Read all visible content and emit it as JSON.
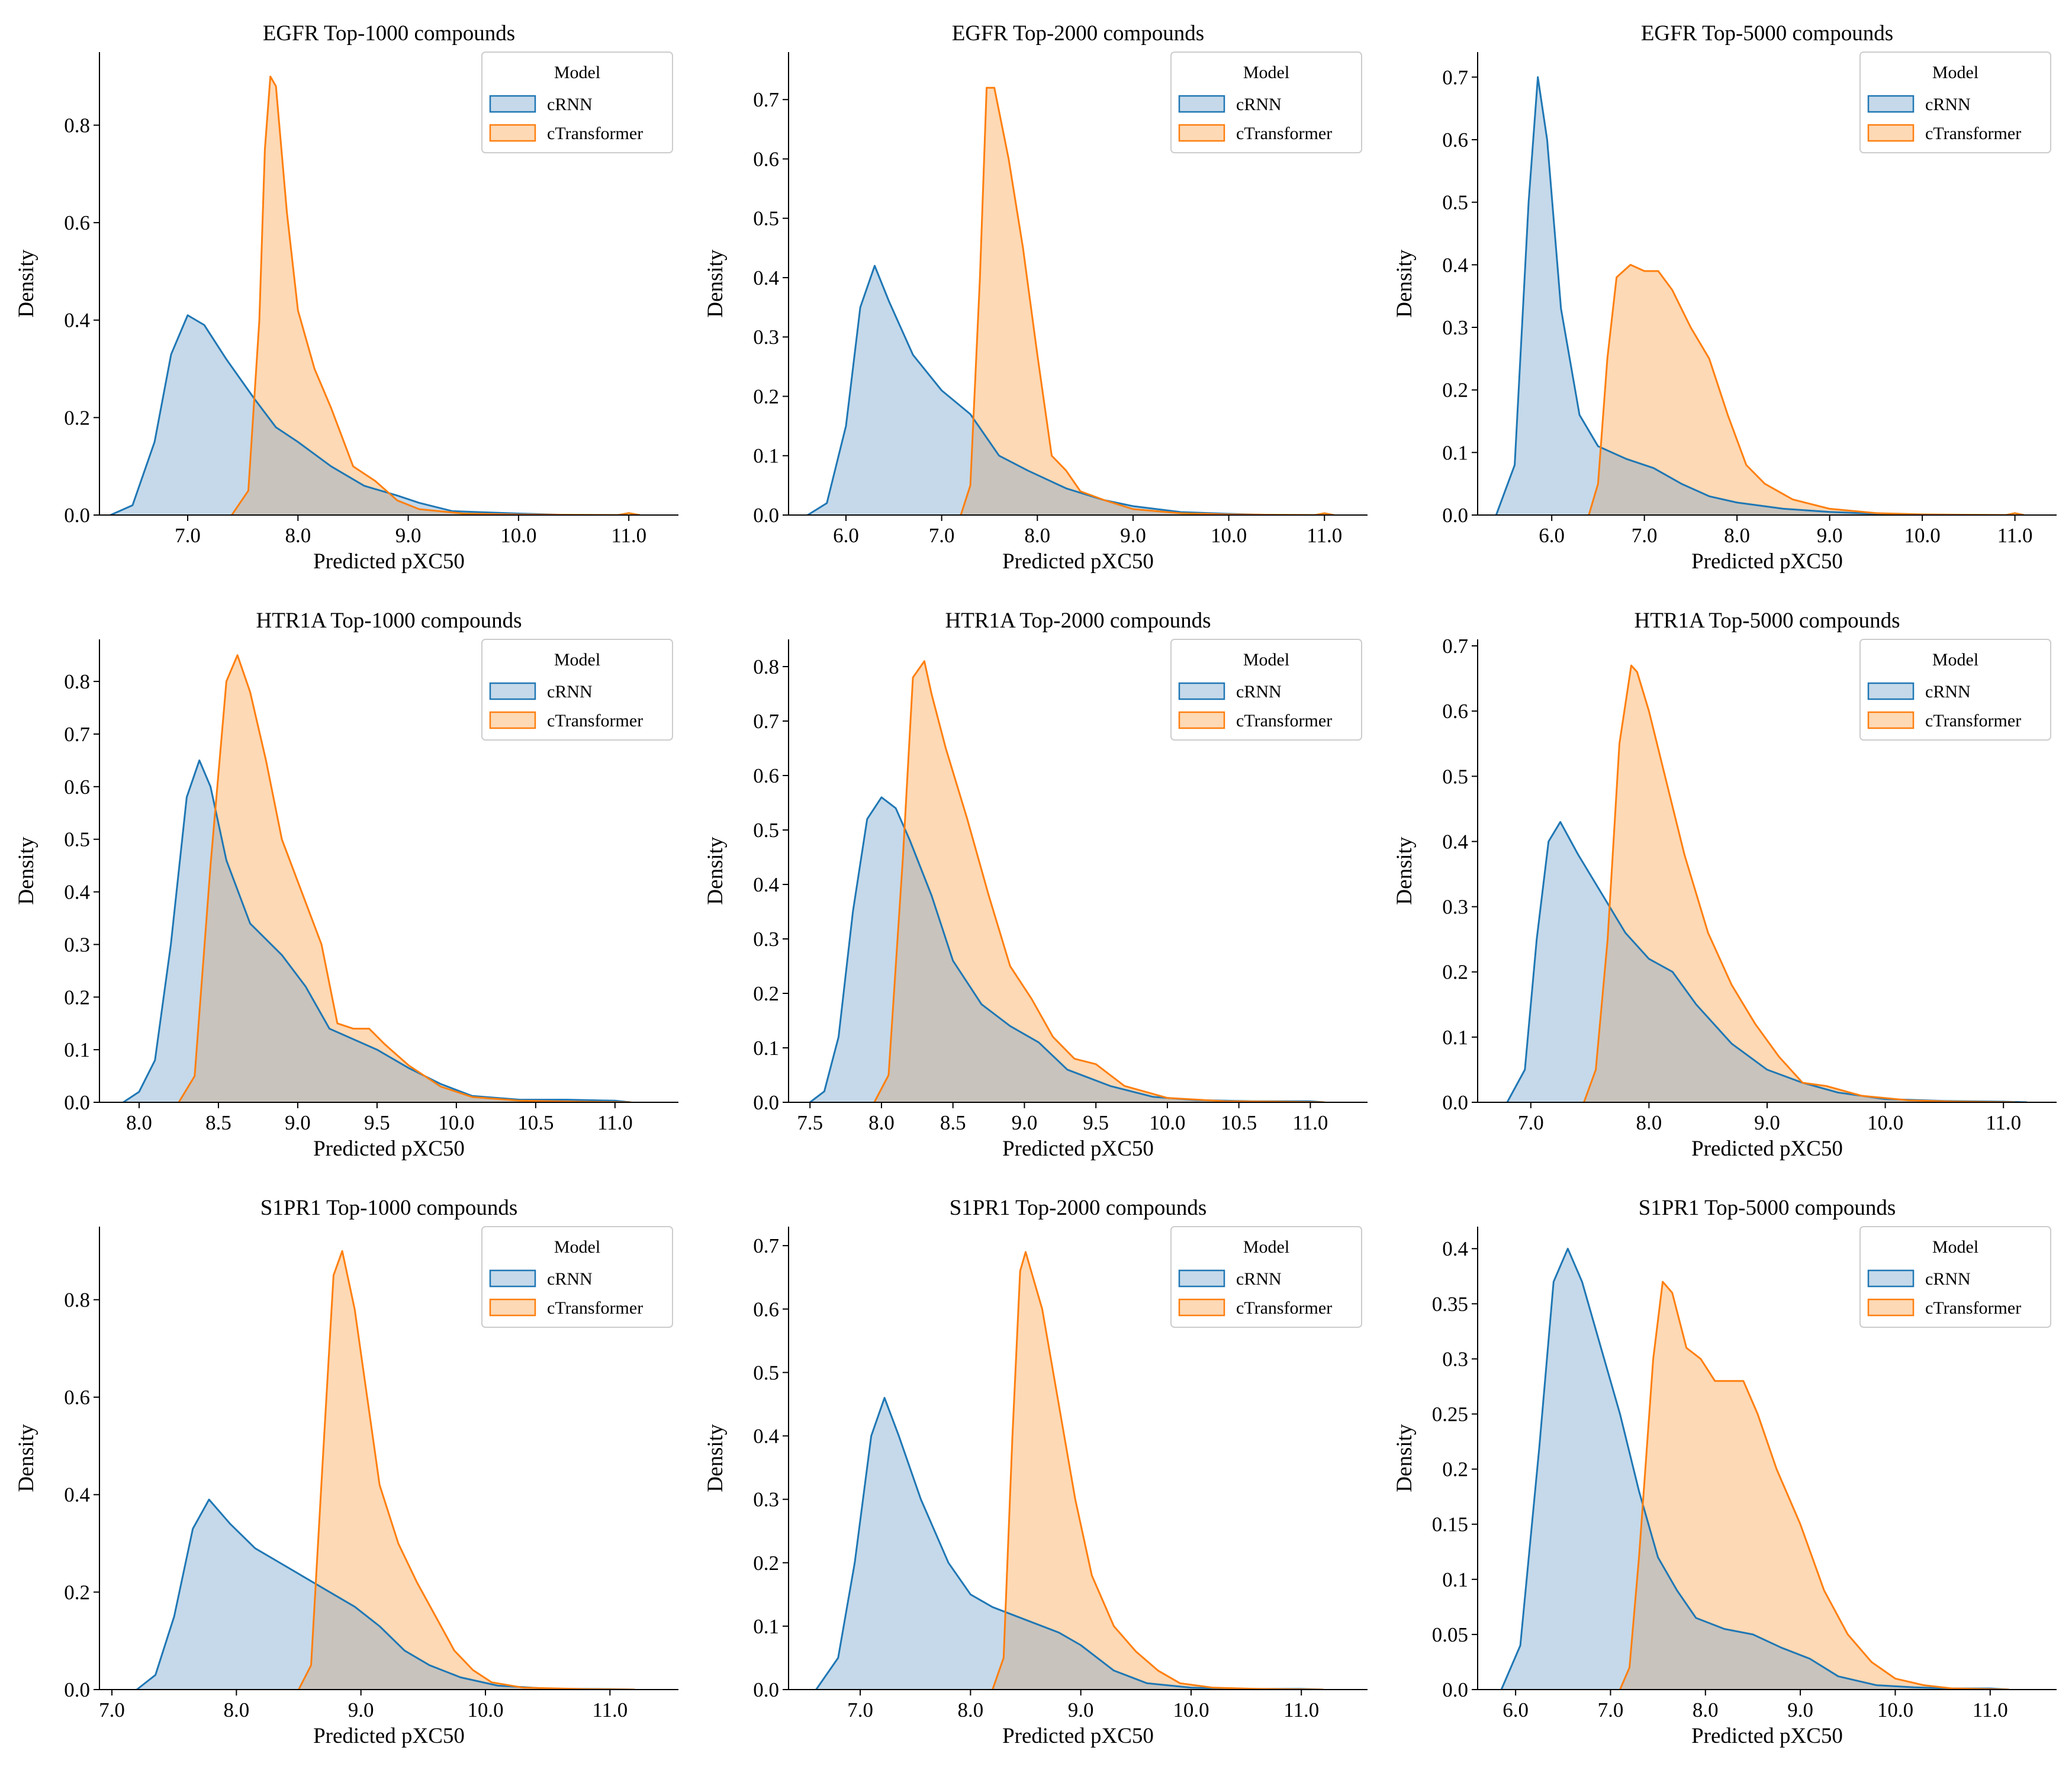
{
  "figure": {
    "xlabel": "Predicted pXC50",
    "ylabel": "Density",
    "legend_title": "Model"
  },
  "colors": {
    "cRNN": "#1f77b4",
    "cRNN_fill": "#c5d9ea",
    "cTransformer": "#ff7f0e",
    "cTransformer_fill": "#fdd9b5",
    "overlap": "#c8c3bd"
  },
  "chart_data": [
    {
      "type": "area",
      "title": "EGFR Top-1000 compounds",
      "xlabel": "Predicted pXC50",
      "ylabel": "Density",
      "xlim": [
        6.2,
        11.45
      ],
      "ylim": [
        0,
        0.95
      ],
      "xticks": [
        "7.0",
        "8.0",
        "9.0",
        "10.0",
        "11.0"
      ],
      "yticks": [
        "0.0",
        "0.2",
        "0.4",
        "0.6",
        "0.8"
      ],
      "legend": [
        "cRNN",
        "cTransformer"
      ],
      "legend_position": "top-right",
      "series": [
        {
          "name": "cRNN",
          "x": [
            6.3,
            6.5,
            6.7,
            6.85,
            7.0,
            7.15,
            7.35,
            7.6,
            7.8,
            8.0,
            8.3,
            8.6,
            8.9,
            9.1,
            9.4,
            10.0,
            10.5
          ],
          "y": [
            0,
            0.02,
            0.15,
            0.33,
            0.41,
            0.39,
            0.32,
            0.24,
            0.18,
            0.15,
            0.1,
            0.06,
            0.04,
            0.025,
            0.008,
            0.003,
            0
          ]
        },
        {
          "name": "cTransformer",
          "x": [
            7.4,
            7.55,
            7.65,
            7.7,
            7.75,
            7.8,
            7.9,
            8.0,
            8.15,
            8.3,
            8.5,
            8.7,
            8.9,
            9.1,
            9.5,
            10.0,
            10.9,
            11.0,
            11.1
          ],
          "y": [
            0,
            0.05,
            0.4,
            0.75,
            0.9,
            0.88,
            0.62,
            0.42,
            0.3,
            0.22,
            0.1,
            0.07,
            0.03,
            0.012,
            0.003,
            0.001,
            0,
            0.004,
            0
          ]
        }
      ]
    },
    {
      "type": "area",
      "title": "EGFR Top-2000 compounds",
      "xlabel": "Predicted pXC50",
      "ylabel": "Density",
      "xlim": [
        5.4,
        11.45
      ],
      "ylim": [
        0,
        0.78
      ],
      "xticks": [
        "6.0",
        "7.0",
        "8.0",
        "9.0",
        "10.0",
        "11.0"
      ],
      "yticks": [
        "0.0",
        "0.1",
        "0.2",
        "0.3",
        "0.4",
        "0.5",
        "0.6",
        "0.7"
      ],
      "legend": [
        "cRNN",
        "cTransformer"
      ],
      "legend_position": "top-right",
      "series": [
        {
          "name": "cRNN",
          "x": [
            5.6,
            5.8,
            6.0,
            6.15,
            6.3,
            6.45,
            6.7,
            7.0,
            7.3,
            7.6,
            7.9,
            8.3,
            8.7,
            9.0,
            9.5,
            10.0,
            10.5
          ],
          "y": [
            0,
            0.02,
            0.15,
            0.35,
            0.42,
            0.36,
            0.27,
            0.21,
            0.17,
            0.1,
            0.075,
            0.045,
            0.025,
            0.015,
            0.005,
            0.002,
            0
          ]
        },
        {
          "name": "cTransformer",
          "x": [
            7.2,
            7.3,
            7.4,
            7.47,
            7.55,
            7.7,
            7.85,
            8.0,
            8.15,
            8.3,
            8.45,
            8.7,
            9.0,
            9.5,
            10.0,
            10.9,
            11.0,
            11.1
          ],
          "y": [
            0,
            0.05,
            0.4,
            0.72,
            0.72,
            0.6,
            0.45,
            0.27,
            0.1,
            0.075,
            0.04,
            0.025,
            0.01,
            0.003,
            0.001,
            0,
            0.003,
            0
          ]
        }
      ]
    },
    {
      "type": "area",
      "title": "EGFR Top-5000 compounds",
      "xlabel": "Predicted pXC50",
      "ylabel": "Density",
      "xlim": [
        5.2,
        11.45
      ],
      "ylim": [
        0,
        0.74
      ],
      "xticks": [
        "6.0",
        "7.0",
        "8.0",
        "9.0",
        "10.0",
        "11.0"
      ],
      "yticks": [
        "0.0",
        "0.1",
        "0.2",
        "0.3",
        "0.4",
        "0.5",
        "0.6",
        "0.7"
      ],
      "legend": [
        "cRNN",
        "cTransformer"
      ],
      "legend_position": "top-right",
      "series": [
        {
          "name": "cRNN",
          "x": [
            5.4,
            5.6,
            5.75,
            5.85,
            5.95,
            6.1,
            6.3,
            6.5,
            6.8,
            7.1,
            7.4,
            7.7,
            8.0,
            8.5,
            9.0,
            9.5,
            10.0
          ],
          "y": [
            0,
            0.08,
            0.5,
            0.7,
            0.6,
            0.33,
            0.16,
            0.11,
            0.09,
            0.075,
            0.05,
            0.03,
            0.02,
            0.01,
            0.005,
            0.002,
            0
          ]
        },
        {
          "name": "cTransformer",
          "x": [
            6.4,
            6.5,
            6.6,
            6.7,
            6.85,
            7.0,
            7.15,
            7.3,
            7.5,
            7.7,
            7.9,
            8.1,
            8.3,
            8.6,
            9.0,
            9.5,
            10.0,
            10.9,
            11.0,
            11.1
          ],
          "y": [
            0,
            0.05,
            0.25,
            0.38,
            0.4,
            0.39,
            0.39,
            0.36,
            0.3,
            0.25,
            0.16,
            0.08,
            0.05,
            0.025,
            0.01,
            0.003,
            0.001,
            0,
            0.003,
            0
          ]
        }
      ]
    },
    {
      "type": "area",
      "title": "HTR1A Top-1000 compounds",
      "xlabel": "Predicted pXC50",
      "ylabel": "Density",
      "xlim": [
        7.75,
        11.4
      ],
      "ylim": [
        0,
        0.88
      ],
      "xticks": [
        "8.0",
        "8.5",
        "9.0",
        "9.5",
        "10.0",
        "10.5",
        "11.0"
      ],
      "yticks": [
        "0.0",
        "0.1",
        "0.2",
        "0.3",
        "0.4",
        "0.5",
        "0.6",
        "0.7",
        "0.8"
      ],
      "legend": [
        "cRNN",
        "cTransformer"
      ],
      "legend_position": "top-right",
      "series": [
        {
          "name": "cRNN",
          "x": [
            7.9,
            8.0,
            8.1,
            8.2,
            8.3,
            8.38,
            8.45,
            8.55,
            8.7,
            8.9,
            9.05,
            9.2,
            9.35,
            9.5,
            9.7,
            9.9,
            10.1,
            10.4,
            10.7,
            11.0,
            11.1
          ],
          "y": [
            0,
            0.02,
            0.08,
            0.3,
            0.58,
            0.65,
            0.6,
            0.46,
            0.34,
            0.28,
            0.22,
            0.14,
            0.12,
            0.1,
            0.065,
            0.035,
            0.012,
            0.005,
            0.005,
            0.003,
            0
          ]
        },
        {
          "name": "cTransformer",
          "x": [
            8.25,
            8.35,
            8.45,
            8.55,
            8.62,
            8.7,
            8.8,
            8.9,
            9.05,
            9.15,
            9.25,
            9.35,
            9.45,
            9.55,
            9.7,
            9.9,
            10.1,
            10.4,
            10.8,
            11.1
          ],
          "y": [
            0,
            0.05,
            0.45,
            0.8,
            0.85,
            0.78,
            0.65,
            0.5,
            0.38,
            0.3,
            0.15,
            0.14,
            0.14,
            0.11,
            0.07,
            0.03,
            0.01,
            0.003,
            0.001,
            0
          ]
        }
      ]
    },
    {
      "type": "area",
      "title": "HTR1A Top-2000 compounds",
      "xlabel": "Predicted pXC50",
      "ylabel": "Density",
      "xlim": [
        7.35,
        11.4
      ],
      "ylim": [
        0,
        0.85
      ],
      "xticks": [
        "7.5",
        "8.0",
        "8.5",
        "9.0",
        "9.5",
        "10.0",
        "10.5",
        "11.0"
      ],
      "yticks": [
        "0.0",
        "0.1",
        "0.2",
        "0.3",
        "0.4",
        "0.5",
        "0.6",
        "0.7",
        "0.8"
      ],
      "legend": [
        "cRNN",
        "cTransformer"
      ],
      "legend_position": "top-right",
      "series": [
        {
          "name": "cRNN",
          "x": [
            7.5,
            7.6,
            7.7,
            7.8,
            7.9,
            8.0,
            8.1,
            8.2,
            8.35,
            8.5,
            8.7,
            8.9,
            9.1,
            9.3,
            9.6,
            9.9,
            10.2,
            10.6,
            11.0,
            11.1
          ],
          "y": [
            0,
            0.02,
            0.12,
            0.35,
            0.52,
            0.56,
            0.54,
            0.48,
            0.38,
            0.26,
            0.18,
            0.14,
            0.11,
            0.06,
            0.03,
            0.01,
            0.004,
            0.002,
            0.002,
            0
          ]
        },
        {
          "name": "cTransformer",
          "x": [
            7.95,
            8.05,
            8.15,
            8.22,
            8.3,
            8.35,
            8.45,
            8.6,
            8.75,
            8.9,
            9.05,
            9.2,
            9.35,
            9.5,
            9.7,
            10.0,
            10.4,
            10.8,
            11.1
          ],
          "y": [
            0,
            0.05,
            0.45,
            0.78,
            0.81,
            0.75,
            0.65,
            0.52,
            0.38,
            0.25,
            0.19,
            0.12,
            0.08,
            0.07,
            0.03,
            0.008,
            0.002,
            0.001,
            0
          ]
        }
      ]
    },
    {
      "type": "area",
      "title": "HTR1A Top-5000 compounds",
      "xlabel": "Predicted pXC50",
      "ylabel": "Density",
      "xlim": [
        6.55,
        11.45
      ],
      "ylim": [
        0,
        0.71
      ],
      "xticks": [
        "7.0",
        "8.0",
        "9.0",
        "10.0",
        "11.0"
      ],
      "yticks": [
        "0.0",
        "0.1",
        "0.2",
        "0.3",
        "0.4",
        "0.5",
        "0.6",
        "0.7"
      ],
      "legend": [
        "cRNN",
        "cTransformer"
      ],
      "legend_position": "top-right",
      "series": [
        {
          "name": "cRNN",
          "x": [
            6.8,
            6.95,
            7.05,
            7.15,
            7.25,
            7.4,
            7.6,
            7.8,
            8.0,
            8.2,
            8.4,
            8.7,
            9.0,
            9.3,
            9.6,
            10.0,
            10.5,
            11.0,
            11.2
          ],
          "y": [
            0,
            0.05,
            0.25,
            0.4,
            0.43,
            0.38,
            0.32,
            0.26,
            0.22,
            0.2,
            0.15,
            0.09,
            0.05,
            0.03,
            0.015,
            0.005,
            0.002,
            0.001,
            0
          ]
        },
        {
          "name": "cTransformer",
          "x": [
            7.45,
            7.55,
            7.65,
            7.75,
            7.85,
            7.9,
            8.0,
            8.15,
            8.3,
            8.5,
            8.7,
            8.9,
            9.1,
            9.3,
            9.5,
            9.8,
            10.2,
            10.6,
            11.1
          ],
          "y": [
            0,
            0.05,
            0.25,
            0.55,
            0.67,
            0.66,
            0.6,
            0.49,
            0.38,
            0.26,
            0.18,
            0.12,
            0.07,
            0.03,
            0.025,
            0.01,
            0.003,
            0.001,
            0
          ]
        }
      ]
    },
    {
      "type": "area",
      "title": "S1PR1 Top-1000 compounds",
      "xlabel": "Predicted pXC50",
      "ylabel": "Density",
      "xlim": [
        6.9,
        11.55
      ],
      "ylim": [
        0,
        0.95
      ],
      "xticks": [
        "7.0",
        "8.0",
        "9.0",
        "10.0",
        "11.0"
      ],
      "yticks": [
        "0.0",
        "0.2",
        "0.4",
        "0.6",
        "0.8"
      ],
      "legend": [
        "cRNN",
        "cTransformer"
      ],
      "legend_position": "top-right",
      "series": [
        {
          "name": "cRNN",
          "x": [
            7.2,
            7.35,
            7.5,
            7.65,
            7.78,
            7.95,
            8.15,
            8.35,
            8.55,
            8.75,
            8.95,
            9.15,
            9.35,
            9.55,
            9.8,
            10.1,
            10.5,
            11.0,
            11.2
          ],
          "y": [
            0,
            0.03,
            0.15,
            0.33,
            0.39,
            0.34,
            0.29,
            0.26,
            0.23,
            0.2,
            0.17,
            0.13,
            0.08,
            0.05,
            0.025,
            0.008,
            0.002,
            0.001,
            0
          ]
        },
        {
          "name": "cTransformer",
          "x": [
            8.5,
            8.6,
            8.7,
            8.78,
            8.85,
            8.95,
            9.05,
            9.15,
            9.3,
            9.45,
            9.6,
            9.75,
            9.9,
            10.05,
            10.3,
            10.8,
            11.2
          ],
          "y": [
            0,
            0.05,
            0.5,
            0.85,
            0.9,
            0.78,
            0.6,
            0.42,
            0.3,
            0.22,
            0.15,
            0.08,
            0.04,
            0.015,
            0.004,
            0.001,
            0
          ]
        }
      ]
    },
    {
      "type": "area",
      "title": "S1PR1 Top-2000 compounds",
      "xlabel": "Predicted pXC50",
      "ylabel": "Density",
      "xlim": [
        6.35,
        11.6
      ],
      "ylim": [
        0,
        0.73
      ],
      "xticks": [
        "7.0",
        "8.0",
        "9.0",
        "10.0",
        "11.0"
      ],
      "yticks": [
        "0.0",
        "0.1",
        "0.2",
        "0.3",
        "0.4",
        "0.5",
        "0.6",
        "0.7"
      ],
      "legend": [
        "cRNN",
        "cTransformer"
      ],
      "legend_position": "top-right",
      "series": [
        {
          "name": "cRNN",
          "x": [
            6.6,
            6.8,
            6.95,
            7.1,
            7.22,
            7.35,
            7.55,
            7.8,
            8.0,
            8.2,
            8.5,
            8.8,
            9.0,
            9.3,
            9.6,
            10.0,
            10.5,
            11.0,
            11.2
          ],
          "y": [
            0,
            0.05,
            0.2,
            0.4,
            0.46,
            0.4,
            0.3,
            0.2,
            0.15,
            0.13,
            0.11,
            0.09,
            0.07,
            0.03,
            0.01,
            0.003,
            0.001,
            0.001,
            0
          ]
        },
        {
          "name": "cTransformer",
          "x": [
            8.2,
            8.3,
            8.38,
            8.45,
            8.5,
            8.55,
            8.65,
            8.8,
            8.95,
            9.1,
            9.3,
            9.5,
            9.7,
            9.9,
            10.2,
            10.6,
            11.2
          ],
          "y": [
            0,
            0.05,
            0.4,
            0.66,
            0.69,
            0.66,
            0.6,
            0.45,
            0.3,
            0.18,
            0.1,
            0.06,
            0.03,
            0.01,
            0.003,
            0.001,
            0
          ]
        }
      ]
    },
    {
      "type": "area",
      "title": "S1PR1 Top-5000 compounds",
      "xlabel": "Predicted pXC50",
      "ylabel": "Density",
      "xlim": [
        5.6,
        11.7
      ],
      "ylim": [
        0,
        0.42
      ],
      "xticks": [
        "6.0",
        "7.0",
        "8.0",
        "9.0",
        "10.0",
        "11.0"
      ],
      "yticks": [
        "0.0",
        "0.05",
        "0.1",
        "0.15",
        "0.2",
        "0.25",
        "0.3",
        "0.35",
        "0.4"
      ],
      "legend": [
        "cRNN",
        "cTransformer"
      ],
      "legend_position": "top-right",
      "series": [
        {
          "name": "cRNN",
          "x": [
            5.85,
            6.05,
            6.25,
            6.4,
            6.55,
            6.7,
            6.9,
            7.1,
            7.3,
            7.5,
            7.7,
            7.9,
            8.2,
            8.5,
            8.8,
            9.1,
            9.4,
            9.8,
            10.2,
            10.6,
            11.0,
            11.2
          ],
          "y": [
            0,
            0.04,
            0.22,
            0.37,
            0.4,
            0.37,
            0.31,
            0.25,
            0.18,
            0.12,
            0.09,
            0.065,
            0.055,
            0.05,
            0.038,
            0.028,
            0.012,
            0.004,
            0.002,
            0.001,
            0.001,
            0
          ]
        },
        {
          "name": "cTransformer",
          "x": [
            7.1,
            7.2,
            7.3,
            7.45,
            7.55,
            7.65,
            7.8,
            7.95,
            8.1,
            8.25,
            8.4,
            8.55,
            8.75,
            9.0,
            9.25,
            9.5,
            9.75,
            10.0,
            10.3,
            10.6,
            11.2
          ],
          "y": [
            0,
            0.02,
            0.12,
            0.3,
            0.37,
            0.36,
            0.31,
            0.3,
            0.28,
            0.28,
            0.28,
            0.25,
            0.2,
            0.15,
            0.09,
            0.05,
            0.025,
            0.01,
            0.004,
            0.001,
            0
          ]
        }
      ]
    }
  ]
}
